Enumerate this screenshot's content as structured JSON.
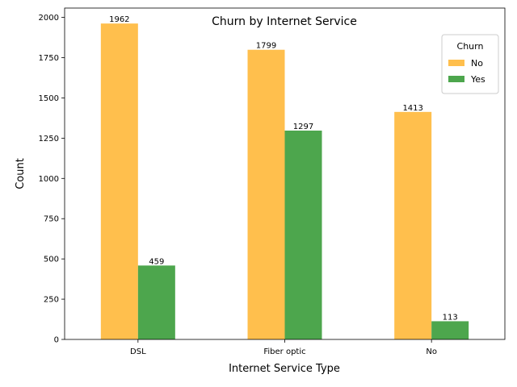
{
  "chart_data": {
    "type": "bar",
    "title": "Churn by Internet Service",
    "xlabel": "Internet Service Type",
    "ylabel": "Count",
    "categories": [
      "DSL",
      "Fiber optic",
      "No"
    ],
    "series": [
      {
        "name": "No",
        "values": [
          1962,
          1799,
          1413
        ],
        "color": "#ffbf4d"
      },
      {
        "name": "Yes",
        "values": [
          459,
          1297,
          113
        ],
        "color": "#4da64d"
      }
    ],
    "ylim": [
      0,
      2058
    ],
    "yticks": [
      0,
      250,
      500,
      750,
      1000,
      1250,
      1500,
      1750,
      2000
    ],
    "legend": {
      "title": "Churn",
      "placement": "top-right"
    },
    "grid": false
  }
}
